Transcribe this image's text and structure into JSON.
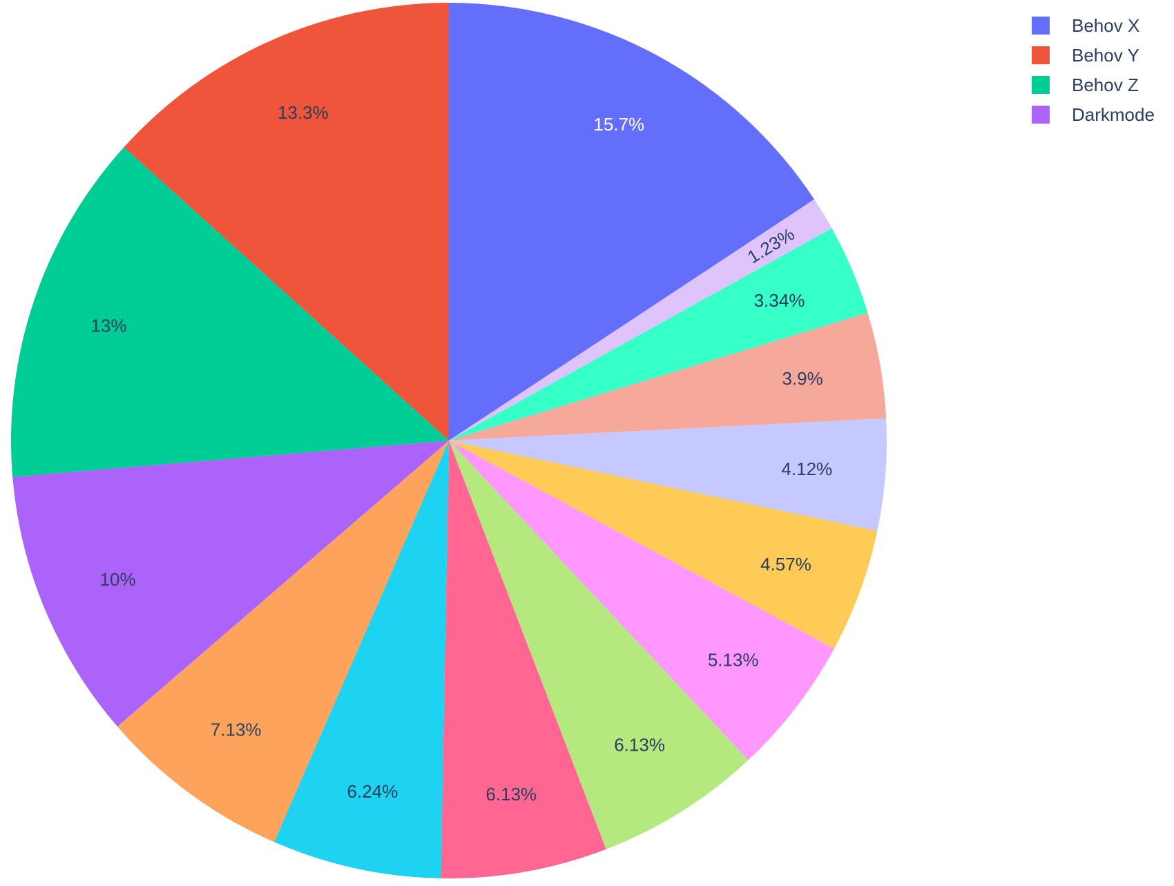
{
  "chart_data": {
    "type": "pie",
    "direction": "clockwise",
    "start_angle_deg": 90,
    "slices": [
      {
        "label": "Behov X",
        "percent": 15.7,
        "text": "15.7%",
        "color": "#636efa",
        "text_color": "#ffffff"
      },
      {
        "label": "",
        "percent": 1.23,
        "text": "1.23%",
        "color": "#dec4fb",
        "text_color": "#2a3f5f",
        "text_rotated": true
      },
      {
        "label": "",
        "percent": 3.34,
        "text": "3.34%",
        "color": "#36ffc8",
        "text_color": "#2a3f5f"
      },
      {
        "label": "",
        "percent": 3.9,
        "text": "3.9%",
        "color": "#f6a99a",
        "text_color": "#2a3f5f"
      },
      {
        "label": "",
        "percent": 4.12,
        "text": "4.12%",
        "color": "#c6c9ff",
        "text_color": "#2a3f5f"
      },
      {
        "label": "",
        "percent": 4.57,
        "text": "4.57%",
        "color": "#ffcb57",
        "text_color": "#2a3f5f"
      },
      {
        "label": "",
        "percent": 5.13,
        "text": "5.13%",
        "color": "#ff97ff",
        "text_color": "#2a3f5f"
      },
      {
        "label": "",
        "percent": 6.13,
        "text": "6.13%",
        "color": "#b6e880",
        "text_color": "#2a3f5f"
      },
      {
        "label": "",
        "percent": 6.13,
        "text": "6.13%",
        "color": "#ff6692",
        "text_color": "#2a3f5f"
      },
      {
        "label": "",
        "percent": 6.24,
        "text": "6.24%",
        "color": "#1ed3f2",
        "text_color": "#2a3f5f"
      },
      {
        "label": "",
        "percent": 7.13,
        "text": "7.13%",
        "color": "#fea35c",
        "text_color": "#2a3f5f"
      },
      {
        "label": "Darkmode",
        "percent": 10.0,
        "text": "10%",
        "color": "#ab63fa",
        "text_color": "#2a3f5f"
      },
      {
        "label": "Behov Z",
        "percent": 13.0,
        "text": "13%",
        "color": "#00cc96",
        "text_color": "#2a3f5f"
      },
      {
        "label": "Behov Y",
        "percent": 13.3,
        "text": "13.3%",
        "color": "#ef553b",
        "text_color": "#2a3f5f"
      }
    ],
    "legend": {
      "placement": "top-right",
      "entries": [
        {
          "label": "Behov X",
          "color": "#636efa"
        },
        {
          "label": "Behov Y",
          "color": "#ef553b"
        },
        {
          "label": "Behov Z",
          "color": "#00cc96"
        },
        {
          "label": "Darkmode",
          "color": "#ab63fa"
        }
      ]
    }
  }
}
